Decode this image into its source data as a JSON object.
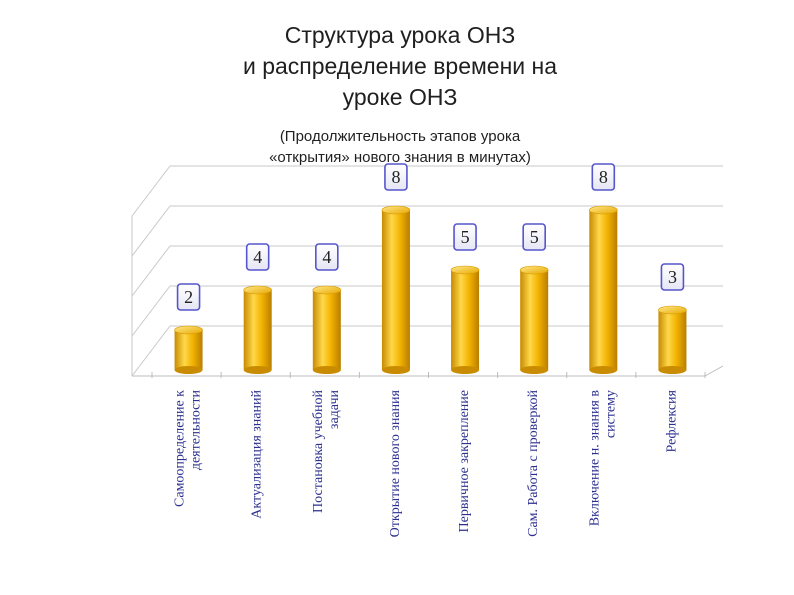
{
  "title_lines": [
    "Структура урока  ОНЗ",
    "и распределение времени на",
    "уроке ОНЗ"
  ],
  "subtitle_lines": [
    "(Продолжительность этапов урока",
    "«открытия» нового знания в минутах)"
  ],
  "colors": {
    "bar": "#f2b200",
    "bar_light": "#ffe066",
    "bar_dark": "#c78a00",
    "label_border": "#5555cc",
    "axis_text": "#2b2f8f"
  },
  "chart_data": {
    "type": "bar",
    "title": "",
    "xlabel": "",
    "ylabel": "",
    "ylim": [
      0,
      8
    ],
    "grid": true,
    "legend": "none",
    "categories": [
      [
        "Самоопределение к",
        "деятельности"
      ],
      [
        "Актуализация знаний"
      ],
      [
        "Постановка учебной",
        "задачи"
      ],
      [
        "Открытие нового знания"
      ],
      [
        "Первичное закрепление"
      ],
      [
        "Сам. Работа с проверкой"
      ],
      [
        "Включение н. знания в",
        "систему"
      ],
      [
        "Рефлексия"
      ]
    ],
    "values": [
      2,
      4,
      4,
      8,
      5,
      5,
      8,
      3
    ],
    "data_labels": [
      "2",
      "4",
      "4",
      "8",
      "5",
      "5",
      "8",
      "3"
    ]
  }
}
